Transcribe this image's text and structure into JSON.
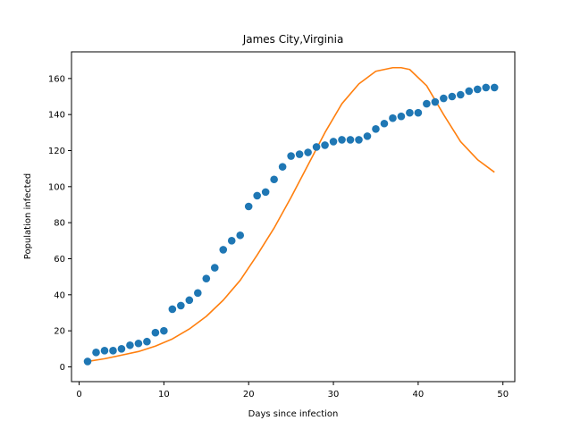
{
  "chart_data": {
    "type": "scatter",
    "title": "James City,Virginia",
    "xlabel": "Days since infection",
    "ylabel": "Population infected",
    "xlim": [
      -0.9,
      51.4
    ],
    "ylim": [
      -8.2,
      174.8
    ],
    "xticks": [
      0,
      10,
      20,
      30,
      40,
      50
    ],
    "yticks": [
      0,
      20,
      40,
      60,
      80,
      100,
      120,
      140,
      160
    ],
    "grid": false,
    "series": [
      {
        "kind": "scatter",
        "color": "#1f77b4",
        "x": [
          1,
          2,
          3,
          4,
          5,
          6,
          7,
          8,
          9,
          10,
          11,
          12,
          13,
          14,
          15,
          16,
          17,
          18,
          19,
          20,
          21,
          22,
          23,
          24,
          25,
          26,
          27,
          28,
          29,
          30,
          31,
          32,
          33,
          34,
          35,
          36,
          37,
          38,
          39,
          40,
          41,
          42,
          43,
          44,
          45,
          46,
          47,
          48,
          49
        ],
        "y": [
          3,
          8,
          9,
          9,
          10,
          12,
          13,
          14,
          19,
          20,
          32,
          34,
          37,
          41,
          49,
          55,
          65,
          70,
          73,
          89,
          95,
          97,
          104,
          111,
          117,
          118,
          119,
          122,
          123,
          125,
          126,
          126,
          126,
          128,
          132,
          135,
          138,
          139,
          141,
          141,
          146,
          147,
          149,
          150,
          151,
          153,
          154,
          155,
          155
        ]
      },
      {
        "kind": "line",
        "color": "#ff7f0e",
        "x": [
          1,
          3,
          5,
          7,
          9,
          11,
          13,
          15,
          17,
          19,
          21,
          23,
          25,
          27,
          29,
          31,
          33,
          35,
          37,
          38,
          39,
          41,
          43,
          45,
          47,
          49
        ],
        "y": [
          3,
          4.5,
          6.5,
          8.5,
          11.5,
          15.5,
          21,
          28,
          37,
          48,
          62,
          77,
          94,
          112,
          130,
          146,
          157,
          164,
          166,
          166,
          165,
          156,
          140,
          125,
          115,
          108
        ]
      }
    ]
  }
}
